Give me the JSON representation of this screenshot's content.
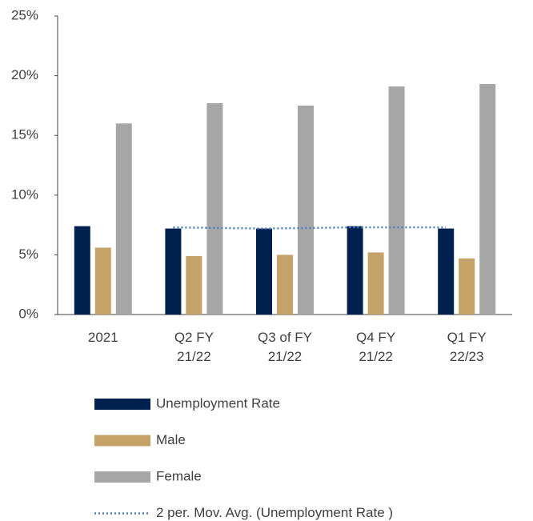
{
  "chart_data": {
    "type": "bar",
    "categories": [
      "2021",
      "Q2 FY\n21/22",
      "Q3 of FY\n21/22",
      "Q4 FY\n21/22",
      "Q1 FY\n22/23"
    ],
    "series": [
      {
        "name": "Unemployment Rate",
        "color": "#002050",
        "values": [
          7.4,
          7.2,
          7.2,
          7.4,
          7.2
        ]
      },
      {
        "name": "Male",
        "color": "#c4a268",
        "values": [
          5.6,
          4.9,
          5.0,
          5.2,
          4.7
        ]
      },
      {
        "name": "Female",
        "color": "#a6a6a6",
        "values": [
          16.0,
          17.7,
          17.5,
          19.1,
          19.3
        ]
      },
      {
        "name": "2 per. Mov. Avg. (Unemployment Rate )",
        "type": "line",
        "color": "#4a7ebb",
        "dashed": true,
        "values": [
          null,
          7.3,
          7.2,
          7.3,
          7.3
        ]
      }
    ],
    "ylim": [
      0,
      25
    ],
    "yticks": [
      {
        "value": 0,
        "label": "0%"
      },
      {
        "value": 5,
        "label": "5%"
      },
      {
        "value": 10,
        "label": "10%"
      },
      {
        "value": 15,
        "label": "15%"
      },
      {
        "value": 20,
        "label": "20%"
      },
      {
        "value": 25,
        "label": "25%"
      }
    ]
  }
}
